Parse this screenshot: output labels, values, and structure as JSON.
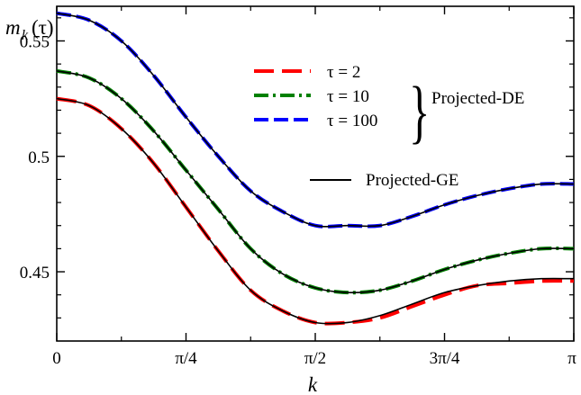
{
  "chart_data": {
    "type": "line",
    "ylabel": "m_k(τ)",
    "ylabel_main": "m",
    "ylabel_sub": "k",
    "ylabel_arg": "(τ)",
    "xlabel": "k",
    "xlim": [
      0,
      3.14159
    ],
    "ylim": [
      0.42,
      0.565
    ],
    "grid": false,
    "legend_position": "top-right",
    "x_ticks": [
      {
        "value": 0,
        "label": "0"
      },
      {
        "value": 0.7854,
        "label": "π/4"
      },
      {
        "value": 1.5708,
        "label": "π/2"
      },
      {
        "value": 2.3562,
        "label": "3π/4"
      },
      {
        "value": 3.14159,
        "label": "π"
      }
    ],
    "y_ticks": [
      {
        "value": 0.45,
        "label": "0.45"
      },
      {
        "value": 0.5,
        "label": "0.5"
      },
      {
        "value": 0.55,
        "label": "0.55"
      }
    ],
    "x": [
      0,
      0.19635,
      0.3927,
      0.58905,
      0.7854,
      0.98175,
      1.1781,
      1.37445,
      1.5708,
      1.76715,
      1.9635,
      2.15985,
      2.3562,
      2.55255,
      2.7489,
      2.94525,
      3.14159
    ],
    "series": [
      {
        "name": "τ = 2",
        "group": "Projected-DE",
        "color": "#ff0000",
        "dash": "22,9",
        "width": 4,
        "values": [
          0.525,
          0.522,
          0.512,
          0.497,
          0.478,
          0.459,
          0.442,
          0.433,
          0.428,
          0.428,
          0.43,
          0.435,
          0.44,
          0.444,
          0.445,
          0.446,
          0.446
        ]
      },
      {
        "name": "τ = 10",
        "group": "Projected-DE",
        "color": "#008000",
        "dash": "16,5,3,5",
        "width": 4,
        "values": [
          0.537,
          0.534,
          0.525,
          0.511,
          0.494,
          0.477,
          0.46,
          0.449,
          0.443,
          0.441,
          0.442,
          0.446,
          0.451,
          0.455,
          0.458,
          0.46,
          0.46
        ]
      },
      {
        "name": "τ = 100",
        "group": "Projected-DE",
        "color": "#0000ff",
        "dash": "16,6",
        "width": 4,
        "values": [
          0.562,
          0.559,
          0.55,
          0.535,
          0.517,
          0.5,
          0.485,
          0.476,
          0.47,
          0.47,
          0.47,
          0.474,
          0.479,
          0.483,
          0.486,
          0.488,
          0.488
        ]
      }
    ],
    "reference_series": {
      "name": "Projected-GE",
      "color": "#000000",
      "width": 1.6,
      "curves": [
        [
          0.525,
          0.522,
          0.512,
          0.497,
          0.478,
          0.459,
          0.442,
          0.433,
          0.428,
          0.428,
          0.431,
          0.436,
          0.441,
          0.444,
          0.446,
          0.447,
          0.447
        ],
        [
          0.537,
          0.534,
          0.525,
          0.511,
          0.494,
          0.477,
          0.46,
          0.449,
          0.443,
          0.441,
          0.442,
          0.446,
          0.451,
          0.455,
          0.458,
          0.46,
          0.46
        ],
        [
          0.562,
          0.559,
          0.55,
          0.535,
          0.517,
          0.5,
          0.485,
          0.476,
          0.47,
          0.47,
          0.47,
          0.474,
          0.479,
          0.483,
          0.486,
          0.488,
          0.488
        ]
      ]
    },
    "legend_group_label": "Projected-DE"
  }
}
